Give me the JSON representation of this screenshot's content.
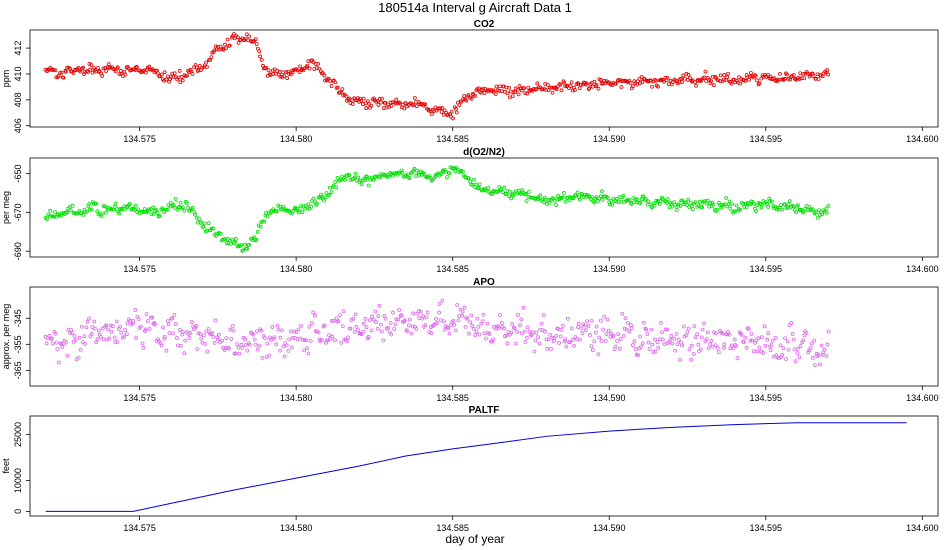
{
  "figure": {
    "title": "180514a   Interval g Aircraft Data 1",
    "xlabel": "day of year"
  },
  "chart_data": [
    {
      "type": "scatter",
      "title": "CO2",
      "ylabel": "ppm",
      "xlim": [
        134.5715,
        134.6005
      ],
      "ylim": [
        405.9,
        413.4
      ],
      "x_ticks": [
        134.575,
        134.58,
        134.585,
        134.59,
        134.595,
        134.6
      ],
      "x_tick_labels": [
        "134.575",
        "134.580",
        "134.585",
        "134.590",
        "134.595",
        "134.600"
      ],
      "y_ticks": [
        406,
        408,
        410,
        412
      ],
      "y_tick_labels": [
        "406",
        "408",
        "410",
        "412"
      ],
      "color": "#e00000",
      "marker": "open-circle",
      "x_range": [
        134.572,
        134.597
      ],
      "series": [
        {
          "x": [
            134.572,
            134.5725,
            134.573,
            134.574,
            134.575,
            134.5755,
            134.576,
            134.5765,
            134.577,
            134.5775,
            134.578,
            134.5783,
            134.5787,
            134.579,
            134.5795,
            134.58,
            134.5805,
            134.581,
            134.5815,
            134.582,
            134.583,
            134.584,
            134.5845,
            134.585,
            134.5855,
            134.586,
            134.587,
            134.588,
            134.589,
            134.59,
            134.591,
            134.592,
            134.593,
            134.594,
            134.595,
            134.596,
            134.597
          ],
          "y": [
            410.3,
            410.1,
            410.4,
            410.3,
            410.3,
            410.2,
            409.6,
            410.0,
            410.6,
            411.8,
            412.6,
            412.9,
            412.5,
            410.3,
            409.9,
            410.3,
            410.8,
            409.6,
            408.4,
            407.7,
            407.8,
            407.6,
            407.2,
            406.9,
            408.3,
            408.8,
            408.7,
            408.9,
            409.1,
            409.2,
            409.4,
            409.5,
            409.6,
            409.6,
            409.7,
            409.8,
            410.1
          ]
        }
      ]
    },
    {
      "type": "scatter",
      "title": "d(O2/N2)",
      "ylabel": "per meg",
      "xlim": [
        134.5715,
        134.6005
      ],
      "ylim": [
        -693,
        -642
      ],
      "x_ticks": [
        134.575,
        134.58,
        134.585,
        134.59,
        134.595,
        134.6
      ],
      "x_tick_labels": [
        "134.575",
        "134.580",
        "134.585",
        "134.590",
        "134.595",
        "134.600"
      ],
      "y_ticks": [
        -690,
        -670,
        -650
      ],
      "y_tick_labels": [
        "-690",
        "-670",
        "-650"
      ],
      "color": "#00e000",
      "marker": "open-circle",
      "x_range": [
        134.572,
        134.597
      ],
      "series": [
        {
          "x": [
            134.572,
            134.5725,
            134.573,
            134.574,
            134.575,
            134.5755,
            134.576,
            134.5765,
            134.577,
            134.5775,
            134.578,
            134.5783,
            134.5787,
            134.579,
            134.5795,
            134.58,
            134.5805,
            134.581,
            134.5815,
            134.582,
            134.583,
            134.584,
            134.5845,
            134.585,
            134.5855,
            134.586,
            134.587,
            134.588,
            134.589,
            134.59,
            134.591,
            134.592,
            134.593,
            134.594,
            134.595,
            134.596,
            134.597
          ],
          "y": [
            -672,
            -670,
            -669,
            -668,
            -669,
            -670,
            -667,
            -666,
            -676,
            -682,
            -686,
            -688,
            -684,
            -671,
            -668,
            -669,
            -666,
            -661,
            -651,
            -653,
            -651,
            -650,
            -652,
            -646,
            -653,
            -659,
            -660,
            -664,
            -662,
            -663,
            -664,
            -665,
            -666,
            -667,
            -666,
            -668,
            -670
          ]
        }
      ]
    },
    {
      "type": "scatter",
      "title": "APO",
      "ylabel": "approx. per meg",
      "xlim": [
        134.5715,
        134.6005
      ],
      "ylim": [
        -371,
        -333
      ],
      "x_ticks": [
        134.575,
        134.58,
        134.585,
        134.59,
        134.595,
        134.6
      ],
      "x_tick_labels": [
        "134.575",
        "134.580",
        "134.585",
        "134.590",
        "134.595",
        "134.600"
      ],
      "y_ticks": [
        -365,
        -355,
        -345
      ],
      "y_tick_labels": [
        "-365",
        "-355",
        "-345"
      ],
      "color": "#dd66ee",
      "marker": "open-circle",
      "x_range": [
        134.572,
        134.597
      ],
      "series": [
        {
          "x": [
            134.572,
            134.573,
            134.574,
            134.575,
            134.576,
            134.577,
            134.578,
            134.579,
            134.58,
            134.581,
            134.582,
            134.583,
            134.584,
            134.585,
            134.586,
            134.587,
            134.588,
            134.589,
            134.59,
            134.591,
            134.592,
            134.593,
            134.594,
            134.595,
            134.596,
            134.597
          ],
          "y": [
            -354,
            -353,
            -351,
            -348,
            -352,
            -350,
            -356,
            -353,
            -352,
            -350,
            -347,
            -347,
            -347,
            -346,
            -349,
            -350,
            -351,
            -350,
            -351,
            -354,
            -353,
            -353,
            -354,
            -354,
            -355,
            -356
          ]
        }
      ]
    },
    {
      "type": "line",
      "title": "PALTF",
      "ylabel": "feet",
      "xlim": [
        134.5715,
        134.6005
      ],
      "ylim": [
        -1500,
        31000
      ],
      "x_ticks": [
        134.575,
        134.58,
        134.585,
        134.59,
        134.595,
        134.6
      ],
      "x_tick_labels": [
        "134.575",
        "134.580",
        "134.585",
        "134.590",
        "134.595",
        "134.600"
      ],
      "y_ticks": [
        0,
        10000,
        25000
      ],
      "y_tick_labels": [
        "0",
        "10000",
        "25000"
      ],
      "color": "#0000dd",
      "series": [
        {
          "x": [
            134.572,
            134.5748,
            134.576,
            134.578,
            134.58,
            134.582,
            134.5835,
            134.585,
            134.5865,
            134.588,
            134.59,
            134.592,
            134.594,
            134.596,
            134.5975,
            134.5995
          ],
          "y": [
            0,
            0,
            2600,
            6900,
            10800,
            14700,
            18000,
            20300,
            22300,
            24400,
            26100,
            27300,
            28200,
            28800,
            28800,
            28800
          ]
        }
      ]
    }
  ]
}
